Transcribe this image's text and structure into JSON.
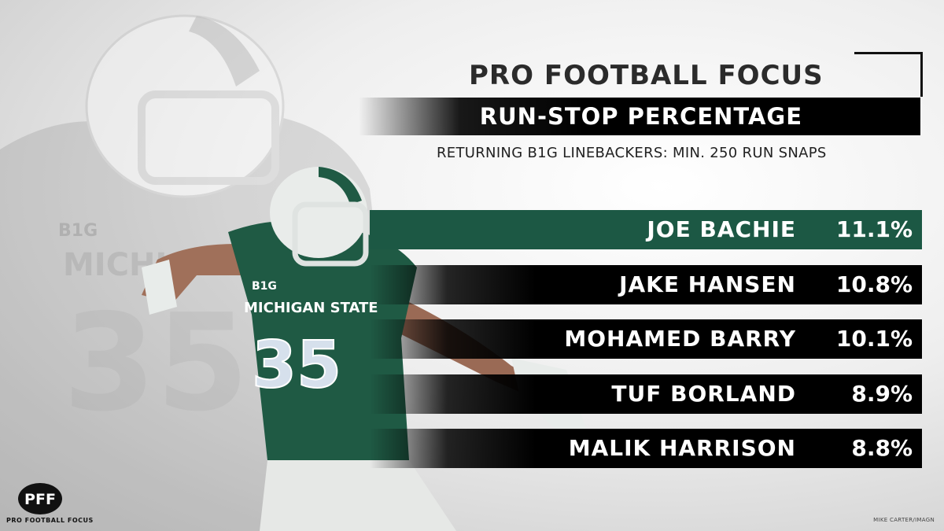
{
  "brand": {
    "text": "PRO FOOTBALL FOCUS"
  },
  "chart_data": {
    "type": "bar",
    "title": "RUN-STOP PERCENTAGE",
    "subtitle": "RETURNING B1G LINEBACKERS: MIN. 250 RUN SNAPS",
    "categories": [
      "JOE BACHIE",
      "JAKE HANSEN",
      "MOHAMED BARRY",
      "TUF BORLAND",
      "MALIK HARRISON"
    ],
    "values": [
      11.1,
      10.8,
      10.1,
      8.9,
      8.8
    ],
    "value_labels": [
      "11.1%",
      "10.8%",
      "10.1%",
      "8.9%",
      "8.8%"
    ],
    "highlight_index": 0,
    "orientation": "horizontal",
    "grid": false,
    "colors": {
      "highlight": "#1c5844",
      "bar": "#000000",
      "text": "#ffffff"
    }
  },
  "player": {
    "jersey_number": "35",
    "jersey_text": "MICHIGAN STATE",
    "patch": "B1G",
    "colors": {
      "jersey": "#1f5a44",
      "helmet": "#e9ecea",
      "pants": "#e6e8e6"
    }
  },
  "logo": {
    "mark": "PFF",
    "caption": "PRO FOOTBALL FOCUS"
  },
  "photo_credit": "MIKE CARTER/IMAGN"
}
